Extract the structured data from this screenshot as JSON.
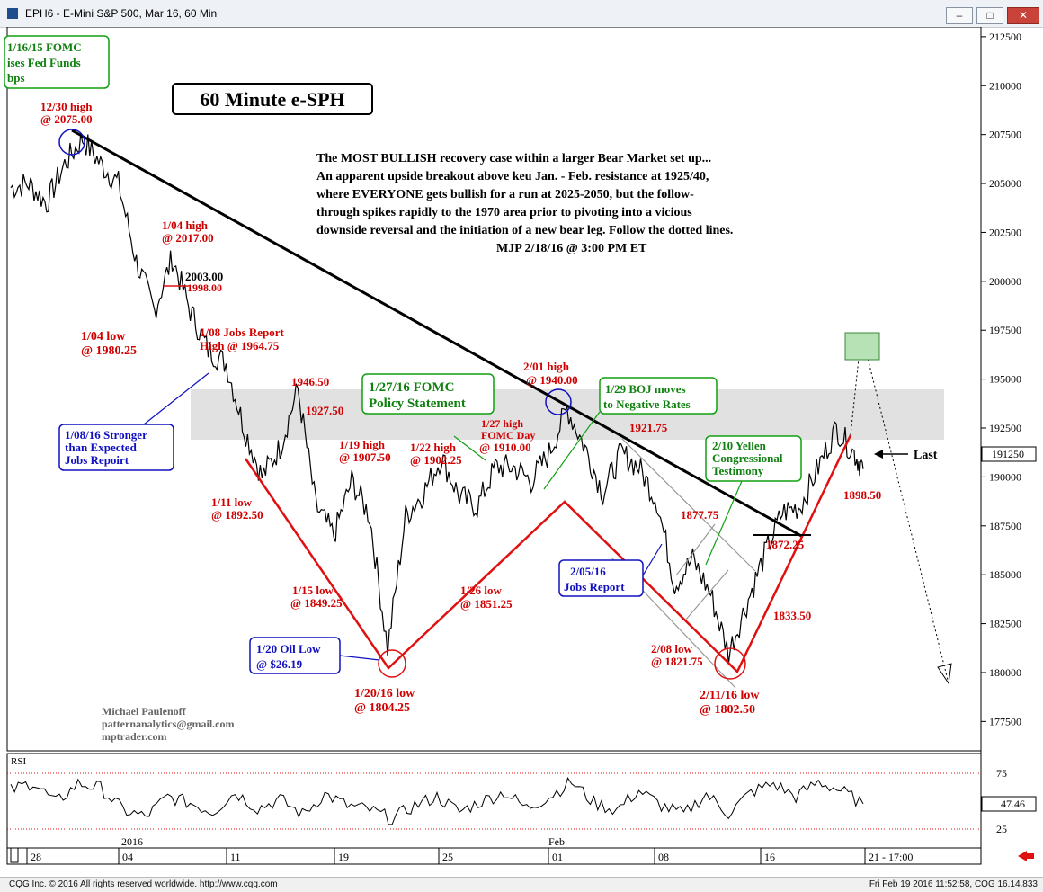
{
  "window": {
    "title": "EPH6 - E-Mini S&P 500, Mar 16, 60 Min",
    "status_left": "CQG Inc. © 2016 All rights reserved worldwide. http://www.cqg.com",
    "status_right": "Fri Feb 19 2016 11:52:58, CQG 16.14.833"
  },
  "chart_data": [
    {
      "type": "line",
      "title": "60 Minute e-SPH",
      "subtitle_lines": [
        "The MOST BULLISH recovery case within a larger Bear Market set up...",
        "An apparent upside breakout above keu Jan. - Feb. resistance at 1925/40,",
        "where EVERYONE gets bullish for a run at 2025-2050, but the follow-",
        "through spikes rapidly to the 1970 area prior to pivoting into a vicious",
        "downside reversal and the initiation of a new bear leg. Follow the dotted lines.",
        "MJP 2/18/16 @ 3:00 PM ET"
      ],
      "ylim": [
        1760,
        2130
      ],
      "y_tick_labels": [
        "212500",
        "210000",
        "207500",
        "205000",
        "202500",
        "200000",
        "197500",
        "195000",
        "192500",
        "190000",
        "187500",
        "185000",
        "182500",
        "180000",
        "177500"
      ],
      "y_tick_values": [
        2125,
        2100,
        2075,
        2050,
        2025,
        2000,
        1975,
        1950,
        1925,
        1900,
        1875,
        1850,
        1825,
        1800,
        1775
      ],
      "last_value_label": "191250",
      "x_tick_labels": [
        "28",
        "04",
        "11",
        "19",
        "25",
        "01",
        "08",
        "16",
        "21 - 17:00"
      ],
      "month_labels": [
        "2016",
        "Feb"
      ],
      "series": [
        {
          "name": "",
          "x": [
            0,
            20,
            40,
            60,
            80,
            100,
            120,
            140,
            160,
            180,
            200,
            220,
            240,
            260,
            280,
            300,
            320,
            340,
            360,
            380,
            400,
            420,
            440,
            460,
            480,
            500,
            520,
            540,
            560,
            580,
            600,
            620,
            640,
            660,
            680,
            700,
            720,
            740,
            760,
            780,
            800,
            820,
            840,
            860,
            880,
            900,
            920,
            940,
            950
          ],
          "values": [
            2048,
            2050,
            2040,
            2060,
            2073,
            2060,
            2050,
            2010,
            1985,
            2012,
            1985,
            1965,
            1958,
            1925,
            1900,
            1915,
            1945,
            1885,
            1870,
            1898,
            1880,
            1812,
            1880,
            1892,
            1910,
            1890,
            1885,
            1905,
            1905,
            1898,
            1912,
            1935,
            1915,
            1892,
            1912,
            1905,
            1888,
            1845,
            1858,
            1840,
            1810,
            1835,
            1860,
            1882,
            1885,
            1905,
            1925,
            1912,
            1904
          ]
        },
        {
          "name": "RSI",
          "x": [
            0,
            25,
            50,
            75,
            100,
            125,
            150,
            175,
            200,
            225,
            250,
            275,
            300,
            325,
            350,
            375,
            400,
            425,
            450,
            475,
            500,
            525,
            550,
            575,
            600,
            625,
            650,
            675,
            700,
            725,
            750,
            775,
            800,
            825,
            850,
            875,
            900,
            925,
            950
          ],
          "values": [
            62,
            72,
            48,
            70,
            65,
            40,
            32,
            55,
            48,
            38,
            60,
            42,
            52,
            35,
            58,
            45,
            40,
            30,
            45,
            55,
            38,
            50,
            60,
            42,
            55,
            72,
            48,
            40,
            62,
            45,
            35,
            58,
            36,
            60,
            70,
            55,
            72,
            62,
            47
          ]
        }
      ],
      "rsi_panel": {
        "label": "RSI",
        "levels": [
          25,
          75
        ],
        "last": "47.46"
      },
      "annotations": {
        "fomc_1216": [
          "1/16/15 FOMC",
          "ises Fed Funds",
          "bps"
        ],
        "high_1230": [
          "12/30 high",
          "@ 2075.00"
        ],
        "high_0104": [
          "1/04 high",
          "@ 2017.00"
        ],
        "lvl_2003": "2003.00",
        "lvl_1998": "1998.00",
        "low_0104": [
          "1/04 low",
          "@ 1980.25"
        ],
        "jobs_0108": [
          "1/08 Jobs Report",
          "High @ 1964.75"
        ],
        "stronger_0108": [
          "1/08/16 Stronger",
          "than Expected",
          "Jobs Repoirt"
        ],
        "lvl_1946": "1946.50",
        "lvl_1927": "1927.50",
        "fomc_0127": [
          "1/27/16 FOMC",
          "Policy Statement"
        ],
        "high_0201": [
          "2/01 high",
          "@ 1940.00"
        ],
        "boj_0129": [
          "1/29 BOJ moves",
          "to Negative Rates"
        ],
        "high_0119": [
          "1/19 high",
          "@ 1907.50"
        ],
        "high_0122": [
          "1/22 high",
          "@ 1902.25"
        ],
        "high_0127": [
          "1/27 high",
          "FOMC Day",
          "@ 1910.00"
        ],
        "lvl_1921": "1921.75",
        "low_0111": [
          "1/11 low",
          "@ 1892.50"
        ],
        "low_0115": [
          "1/15 low",
          "@ 1849.25"
        ],
        "low_0126": [
          "1/26 low",
          "@ 1851.25"
        ],
        "oil_0120": [
          "1/20 Oil Low",
          "@ $26.19"
        ],
        "low_0120": [
          "1/20/16 low",
          "@ 1804.25"
        ],
        "jobs_0205": [
          "2/05/16",
          "Jobs Report"
        ],
        "lvl_1877": "1877.75",
        "yellen_0210": [
          "2/10 Yellen",
          "Congressional",
          "Testimony"
        ],
        "lvl_1872": "1872.25",
        "low_0208": [
          "2/08 low",
          "@ 1821.75"
        ],
        "lvl_1833": "1833.50",
        "low_0211": [
          "2/11/16 low",
          "@ 1802.50"
        ],
        "lvl_1898": "1898.50",
        "last": "Last",
        "credit": [
          "Michael Paulenoff",
          "patternanalytics@gmail.com",
          "mptrader.com"
        ]
      },
      "colors": {
        "price": "#000000",
        "red": "#e01010",
        "blue": "#1010c0",
        "green": "#10a010",
        "annot_red": "#d00000"
      }
    }
  ]
}
